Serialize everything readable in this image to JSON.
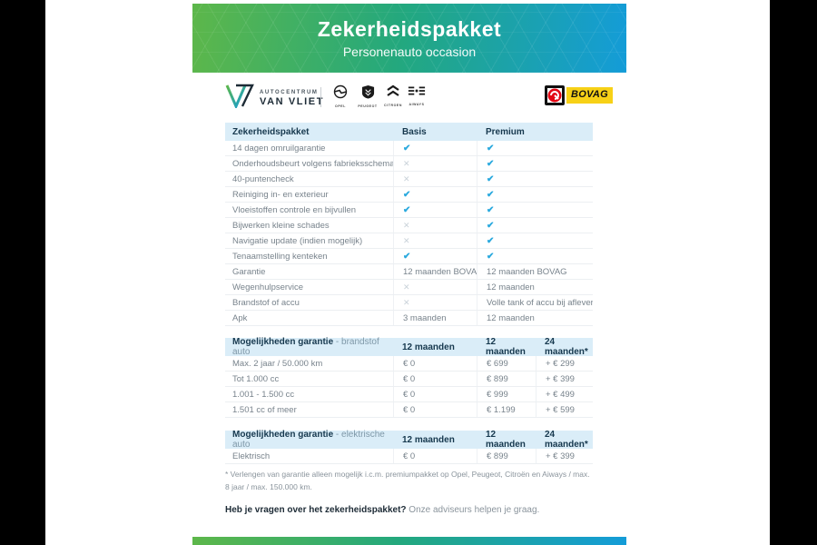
{
  "header": {
    "title": "Zekerheidspakket",
    "subtitle": "Personenauto occasion"
  },
  "dealer": {
    "name_top": "AUTOCENTRUM",
    "name_bottom": "VAN VLIET"
  },
  "brands": {
    "opel": "OPEL",
    "peugeot": "PEUGEOT",
    "citroen": "CITROEN",
    "aiways": "AIWAYS",
    "bovag": "BOVAG"
  },
  "colors": {
    "gradient_start": "#5db74a",
    "gradient_end": "#149cd8",
    "check": "#2aa9de",
    "cross": "#c9d2d9",
    "table_header_bg": "#daedf8",
    "dark_text": "#16384e",
    "bovag_yellow": "#f7d117",
    "bovag_red": "#e30613"
  },
  "features_table": {
    "headers": [
      "Zekerheidspakket",
      "Basis",
      "Premium"
    ],
    "rows": [
      {
        "label": "14 dagen omruilgarantie",
        "cells": [
          "check",
          "check"
        ]
      },
      {
        "label": "Onderhoudsbeurt volgens fabrieksschema",
        "cells": [
          "cross",
          "check"
        ]
      },
      {
        "label": "40-puntencheck",
        "cells": [
          "cross",
          "check"
        ]
      },
      {
        "label": "Reiniging in- en exterieur",
        "cells": [
          "check",
          "check"
        ]
      },
      {
        "label": "Vloeistoffen controle en bijvullen",
        "cells": [
          "check",
          "check"
        ]
      },
      {
        "label": "Bijwerken kleine schades",
        "cells": [
          "cross",
          "check"
        ]
      },
      {
        "label": "Navigatie update (indien mogelijk)",
        "cells": [
          "cross",
          "check"
        ]
      },
      {
        "label": "Tenaamstelling kenteken",
        "cells": [
          "check",
          "check"
        ]
      },
      {
        "label": "Garantie",
        "cells": [
          "12 maanden BOVAG",
          "12 maanden BOVAG"
        ]
      },
      {
        "label": "Wegenhulpservice",
        "cells": [
          "cross",
          "12 maanden"
        ]
      },
      {
        "label": "Brandstof of accu",
        "cells": [
          "cross",
          "Volle tank of accu bij aflevering"
        ]
      },
      {
        "label": "Apk",
        "cells": [
          "3 maanden",
          "12 maanden"
        ]
      }
    ]
  },
  "fuel_table": {
    "title_bold": "Mogelijkheden garantie",
    "title_light": " - brandstof auto",
    "headers": [
      "12 maanden",
      "12 maanden",
      "24 maanden*"
    ],
    "rows": [
      {
        "label": "Max. 2 jaar / 50.000 km",
        "cells": [
          "€ 0",
          "€ 699",
          "+ € 299"
        ]
      },
      {
        "label": "Tot 1.000 cc",
        "cells": [
          "€ 0",
          "€ 899",
          "+ € 399"
        ]
      },
      {
        "label": "1.001 - 1.500 cc",
        "cells": [
          "€ 0",
          "€ 999",
          "+ € 499"
        ]
      },
      {
        "label": "1.501 cc of meer",
        "cells": [
          "€ 0",
          "€ 1.199",
          "+ € 599"
        ]
      }
    ]
  },
  "electric_table": {
    "title_bold": "Mogelijkheden garantie",
    "title_light": " - elektrische auto",
    "headers": [
      "12 maanden",
      "12 maanden",
      "24 maanden*"
    ],
    "rows": [
      {
        "label": "Elektrisch",
        "cells": [
          "€ 0",
          "€ 899",
          "+ € 399"
        ]
      }
    ]
  },
  "footnote": "* Verlengen van garantie alleen mogelijk i.c.m. premiumpakket op Opel, Peugeot, Citroën en Aiways / max. 8 jaar / max. 150.000 km.",
  "cta": {
    "question": "Heb je vragen over het zekerheidspakket?",
    "answer": " Onze adviseurs helpen je graag."
  }
}
